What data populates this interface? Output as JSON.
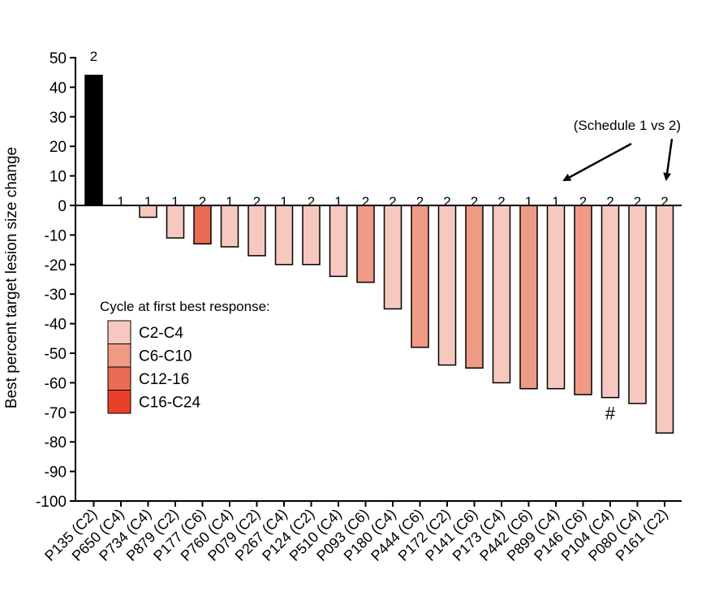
{
  "chart_data": {
    "type": "bar",
    "title": "",
    "ylabel": "Best percent target lesion size change",
    "xlabel": "",
    "ylim": [
      -100,
      50
    ],
    "yticks": [
      50,
      40,
      30,
      20,
      10,
      0,
      -10,
      -20,
      -30,
      -40,
      -50,
      -60,
      -70,
      -80,
      -90,
      -100
    ],
    "categories": [
      "P135 (C2)",
      "P650 (C4)",
      "P734 (C4)",
      "P879 (C2)",
      "P177 (C6)",
      "P760 (C4)",
      "P079 (C2)",
      "P267 (C4)",
      "P124 (C2)",
      "P510 (C4)",
      "P093 (C6)",
      "P180 (C4)",
      "P444 (C6)",
      "P172 (C2)",
      "P141 (C6)",
      "P173 (C4)",
      "P442 (C6)",
      "P899 (C4)",
      "P146 (C6)",
      "P104 (C4)",
      "P080 (C4)",
      "P161 (C2)"
    ],
    "values": [
      44,
      0,
      -4,
      -11,
      -13,
      -14,
      -17,
      -20,
      -20,
      -24,
      -26,
      -35,
      -48,
      -54,
      -55,
      -60,
      -62,
      -62,
      -64,
      -65,
      -67,
      -77
    ],
    "schedule": [
      "2",
      "1",
      "1",
      "1",
      "2",
      "1",
      "2",
      "1",
      "2",
      "1",
      "2",
      "2",
      "2",
      "2",
      "2",
      "2",
      "1",
      "1",
      "2",
      "2",
      "2",
      "2"
    ],
    "color_group": [
      "black",
      "C2-C4",
      "C2-C4",
      "C2-C4",
      "C12-16",
      "C2-C4",
      "C2-C4",
      "C2-C4",
      "C2-C4",
      "C2-C4",
      "C6-C10",
      "C2-C4",
      "C6-C10",
      "C2-C4",
      "C6-C10",
      "C2-C4",
      "C6-C10",
      "C2-C4",
      "C6-C10",
      "C2-C4",
      "C2-C4",
      "C2-C4"
    ],
    "legend": {
      "title": "Cycle at first best response:",
      "placement": "lower-left",
      "entries": [
        {
          "label": "C2-C4",
          "color": "#f7c8c0"
        },
        {
          "label": "C6-C10",
          "color": "#ef9a85"
        },
        {
          "label": "C12-16",
          "color": "#ea6b55"
        },
        {
          "label": "C16-C24",
          "color": "#e8402a"
        }
      ]
    },
    "colors": {
      "black": "#000000",
      "C2-C4": "#f7c8c0",
      "C6-C10": "#ef9a85",
      "C12-16": "#ea6b55",
      "C16-C24": "#e8402a"
    },
    "annotations": {
      "schedule_note": "(Schedule 1 vs 2)",
      "hash_mark": "#",
      "hash_category": "P104 (C4)",
      "arrow_targets": [
        "P899 (C4)",
        "P161 (C2)"
      ]
    }
  }
}
